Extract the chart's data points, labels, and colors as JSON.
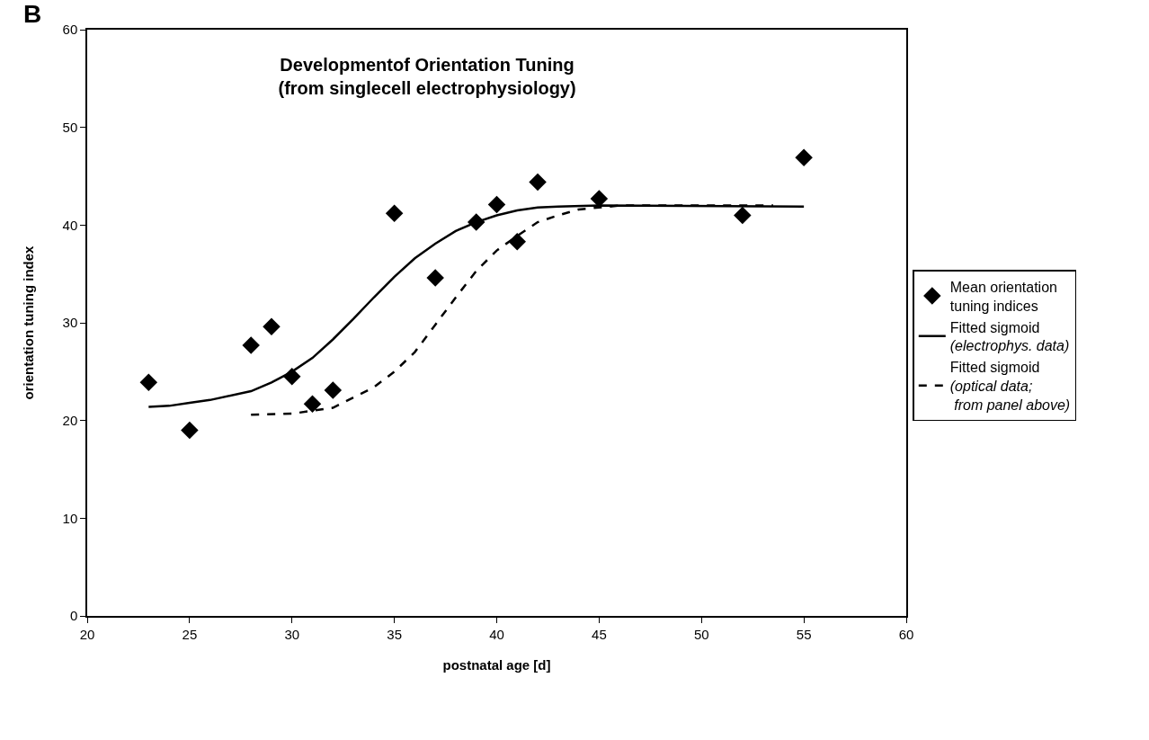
{
  "chart_data": {
    "type": "scatter",
    "title": "Developmentof Orientation Tuning\n(from singlecell electrophysiology)",
    "xlabel": "postnatal age [d]",
    "ylabel": "orientation tuning index",
    "annotations": [
      "B"
    ],
    "xlim": [
      20,
      60
    ],
    "xticks": [
      20,
      25,
      30,
      35,
      40,
      45,
      50,
      55,
      60
    ],
    "ylim": [
      0,
      60
    ],
    "yticks": [
      0,
      10,
      20,
      30,
      40,
      50,
      60
    ],
    "grid": false,
    "legend": "right",
    "series": [
      {
        "name": "Mean orientation\ntuning indices",
        "marker": "diamond",
        "color": "#000000",
        "x": [
          23,
          25,
          28,
          29,
          30,
          31,
          32,
          35,
          37,
          39,
          40,
          41,
          42,
          45,
          52,
          55
        ],
        "values": [
          23.9,
          19.0,
          27.7,
          29.6,
          24.5,
          21.7,
          23.1,
          41.2,
          34.6,
          40.3,
          42.1,
          38.3,
          44.4,
          42.7,
          41.0,
          46.9
        ]
      },
      {
        "name": "Fitted sigmoid\n(electrophys. data)",
        "type": "line",
        "line_style": "solid",
        "color": "#000000",
        "x": [
          23,
          24,
          25,
          26,
          28,
          29,
          30,
          31,
          32,
          33,
          34,
          35,
          36,
          37,
          38,
          39,
          40,
          41,
          42,
          43,
          45,
          55
        ],
        "values": [
          21.4,
          21.5,
          21.8,
          22.1,
          23.0,
          23.9,
          25.0,
          26.4,
          28.3,
          30.4,
          32.6,
          34.7,
          36.6,
          38.1,
          39.4,
          40.3,
          41.0,
          41.5,
          41.8,
          41.9,
          42.0,
          41.9
        ]
      },
      {
        "name": "Fitted sigmoid\n(optical data;\n from panel above)",
        "type": "line",
        "line_style": "dashed",
        "color": "#000000",
        "x": [
          28,
          30,
          32,
          34,
          35,
          36,
          37,
          38,
          39,
          40,
          41,
          42,
          43,
          44,
          46,
          53.5
        ],
        "values": [
          20.6,
          20.7,
          21.3,
          23.4,
          25.0,
          27.0,
          29.8,
          32.6,
          35.3,
          37.4,
          38.9,
          40.3,
          41.0,
          41.6,
          42.0,
          42.0
        ]
      }
    ]
  }
}
